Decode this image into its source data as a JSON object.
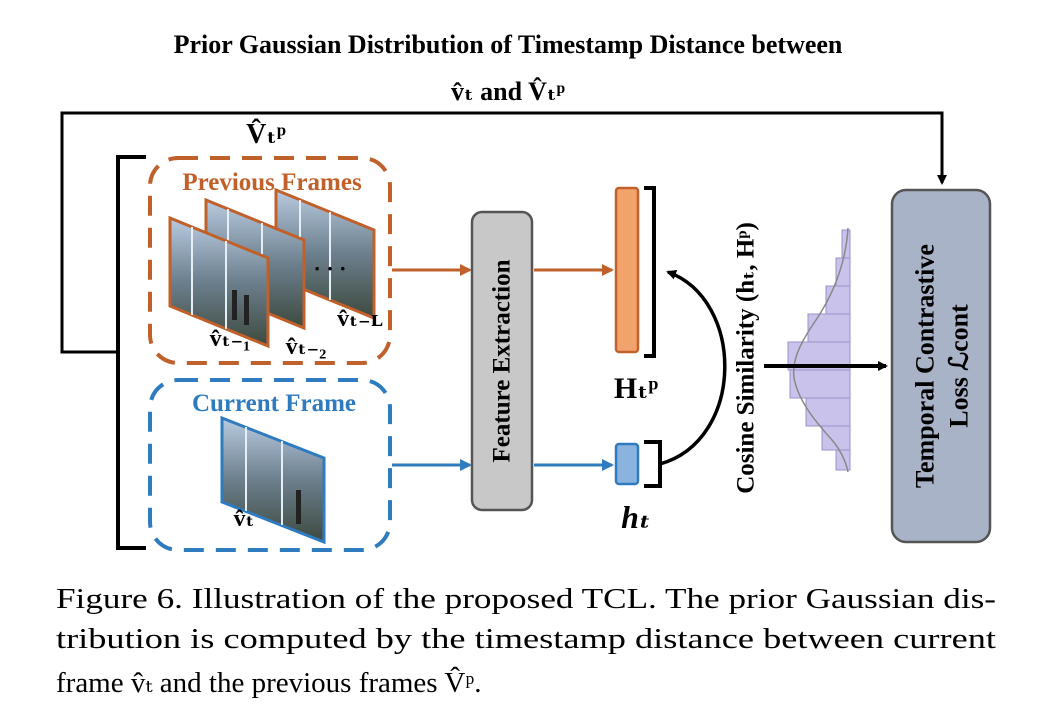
{
  "figure": {
    "top_title_line1": "Prior Gaussian Distribution of Timestamp Distance between",
    "top_title_line2": "v̂ₜ and V̂ₜᵖ",
    "vp_label": "V̂ₜᵖ",
    "previous_frames_label": "Previous Frames",
    "current_frame_label": "Current Frame",
    "frame_labels": {
      "t_minus_1": "v̂ₜ₋₁",
      "t_minus_2": "v̂ₜ₋₂",
      "t_minus_L": "v̂ₜ₋ʟ",
      "current": "v̂ₜ"
    },
    "ellipsis": "· · ·",
    "feature_extraction_label": "Feature Extraction",
    "h_p_label": "Hₜᵖ",
    "h_t_label": "hₜ",
    "cosine_label": "Cosine Similarity (hₜ, Hᵖ)",
    "loss_line1": "Temporal Contrastive",
    "loss_line2": "Loss ℒcont",
    "colors": {
      "previous": "#c0602a",
      "current": "#2f7bbf",
      "hp_fill": "#f2a36c",
      "ht_fill": "#8ab4de",
      "feature_box": "#c8c8c8",
      "loss_box": "#a9b3c8",
      "histogram": "#c9c3ec"
    }
  },
  "caption": {
    "line1": "Figure 6. Illustration of the proposed TCL. The prior Gaussian dis-",
    "line2": "tribution is computed by the timestamp distance between current",
    "line3": "frame v̂ₜ and the previous frames V̂ᵖ."
  }
}
